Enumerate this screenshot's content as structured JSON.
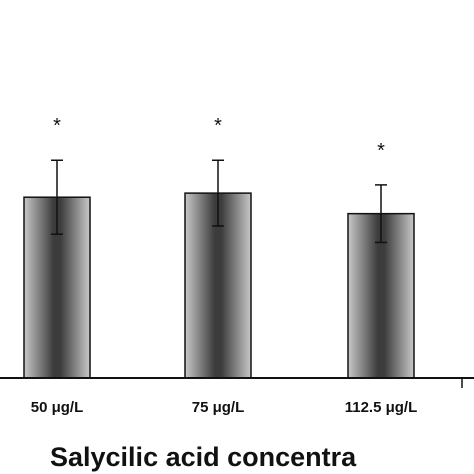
{
  "chart_data": {
    "type": "bar",
    "categories": [
      "50 μg/L",
      "75 μg/L",
      "112.5 μg/L"
    ],
    "values": [
      0.44,
      0.45,
      0.4
    ],
    "errors": [
      0.09,
      0.08,
      0.07
    ],
    "significance": [
      "*",
      "*",
      "*"
    ],
    "xlabel": "Salycilic  acid  concentra",
    "ylabel": "",
    "ylim": [
      0,
      0.92
    ],
    "grid": false,
    "colors": {
      "bar_edge": "#111111",
      "bar_dark": "#3c3c3c",
      "bar_light": "#c8c8c8",
      "axis": "#111111"
    }
  }
}
